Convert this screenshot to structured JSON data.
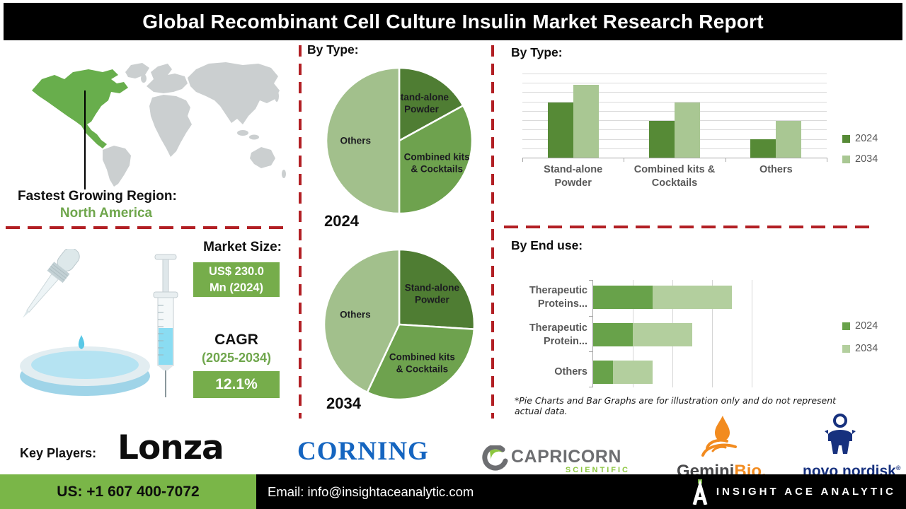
{
  "title": "Global Recombinant Cell Culture Insulin Market Research Report",
  "left": {
    "region_label": "Fastest Growing Region:",
    "region_value": "North America",
    "market_size_label": "Market Size:",
    "market_size_value": "US$ 230.0 Mn (2024)",
    "cagr_label": "CAGR",
    "cagr_period": "(2025-2034)",
    "cagr_value": "12.1%"
  },
  "chart_data": [
    {
      "type": "pie",
      "title": "By Type:",
      "year_label": "2024",
      "labels": [
        "Stand-alone Powder",
        "Combined kits & Cocktails",
        "Others"
      ],
      "label_lines": [
        [
          "Stand-alone",
          "Powder"
        ],
        [
          "Combined kits",
          "& Cocktails"
        ],
        [
          "Others"
        ]
      ],
      "values": [
        17,
        33,
        50
      ],
      "colors": [
        "#4f7d33",
        "#6ea24e",
        "#a2c08c"
      ]
    },
    {
      "type": "pie",
      "title": "By Type:",
      "year_label": "2034",
      "labels": [
        "Stand-alone Powder",
        "Combined kits & Cocktails",
        "Others"
      ],
      "label_lines": [
        [
          "Stand-alone",
          "Powder"
        ],
        [
          "Combined kits",
          "& Cocktails"
        ],
        [
          "Others"
        ]
      ],
      "values": [
        26,
        31,
        43
      ],
      "colors": [
        "#4f7d33",
        "#6ea24e",
        "#a2c08c"
      ]
    },
    {
      "type": "bar",
      "title": "By Type:",
      "categories": [
        "Stand-alone Powder",
        "Combined kits & Cocktails",
        "Others"
      ],
      "series": [
        {
          "name": "2024",
          "values": [
            75,
            50,
            25
          ],
          "color": "#568a36"
        },
        {
          "name": "2034",
          "values": [
            100,
            75,
            50
          ],
          "color": "#a9c793"
        }
      ],
      "ylim": [
        0,
        115
      ],
      "grid": true,
      "legend_position": "right"
    },
    {
      "type": "stacked-bar-horizontal",
      "title": "By End use:",
      "categories": [
        "Therapeutic Proteins...",
        "Therapeutic Protein...",
        "Others"
      ],
      "series": [
        {
          "name": "2024",
          "values": [
            3,
            2,
            1
          ],
          "color": "#68a24a"
        },
        {
          "name": "2034",
          "values": [
            4,
            3,
            2
          ],
          "color": "#b3cf9e"
        }
      ],
      "xlim": [
        0,
        8
      ],
      "grid": true,
      "legend_position": "right"
    }
  ],
  "disclaimer": "*Pie Charts and Bar Graphs are for illustration only and do not represent actual data.",
  "key_players": {
    "label": "Key Players:",
    "lonza": "Lonza",
    "corning": "CORNING",
    "capricorn": "CAPRICORN",
    "capricorn_sub": "SCIENTIFIC",
    "gemini": "Gemini",
    "gemini_suffix": "Bio.",
    "novo": "novo nordisk",
    "novo_reg": "®"
  },
  "footer": {
    "phone": "US: +1 607 400-7072",
    "email": "Email: info@insightaceanalytic.com",
    "brand": "INSIGHT ACE ANALYTIC"
  },
  "colors": {
    "accent_green": "#76ad4b",
    "footer_green": "#7ab648",
    "map_highlight_green": "#68ae4c",
    "text_green": "#6fa64c",
    "divider_red": "#b21f24",
    "corning_blue": "#1565c0",
    "novo_blue": "#17317e",
    "capricorn_gray": "#6d6e71",
    "capricorn_green": "#8cc63f",
    "gemini_orange": "#f28b1f"
  }
}
